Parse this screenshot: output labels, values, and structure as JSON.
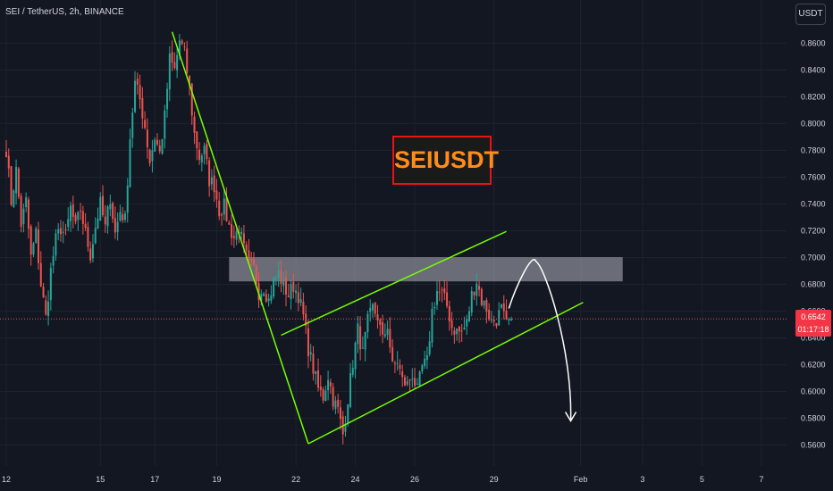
{
  "header": {
    "symbol_title": "SEI / TetherUS, 2h, BINANCE",
    "currency_label": "USDT"
  },
  "annotation": {
    "title": "SEIUSDT",
    "title_color": "#ff8c1a",
    "border_color": "#e81414"
  },
  "price_badge": {
    "price": "0.6542",
    "countdown": "01:17:18",
    "color": "#f23645"
  },
  "colors": {
    "up": "#26a69a",
    "down": "#ef5350",
    "trendline": "#76ff03",
    "resistance_zone": "#b2b5be",
    "background": "#131722"
  },
  "chart_data": {
    "type": "candlestick",
    "y_ticks": [
      "0.8600",
      "0.8400",
      "0.8200",
      "0.8000",
      "0.7800",
      "0.7600",
      "0.7400",
      "0.7200",
      "0.7000",
      "0.6800",
      "0.6600",
      "0.6400",
      "0.6200",
      "0.6000",
      "0.5800",
      "0.5600"
    ],
    "y_tick_values": [
      0.86,
      0.84,
      0.82,
      0.8,
      0.78,
      0.76,
      0.74,
      0.72,
      0.7,
      0.68,
      0.66,
      0.64,
      0.62,
      0.6,
      0.58,
      0.56
    ],
    "x_ticks": [
      "12",
      "15",
      "17",
      "19",
      "22",
      "24",
      "26",
      "29",
      "Feb",
      "3",
      "5",
      "7"
    ],
    "x_tick_index": [
      0,
      38,
      60,
      85,
      117,
      141,
      165,
      197,
      232,
      257,
      281,
      305
    ],
    "ylim": [
      0.549,
      0.884
    ],
    "candle_count": 205,
    "last_price": 0.6542,
    "anchors": [
      [
        0,
        0.781
      ],
      [
        2,
        0.742
      ],
      [
        4,
        0.765
      ],
      [
        6,
        0.725
      ],
      [
        8,
        0.742
      ],
      [
        10,
        0.7
      ],
      [
        12,
        0.718
      ],
      [
        14,
        0.68
      ],
      [
        16,
        0.655
      ],
      [
        18,
        0.69
      ],
      [
        20,
        0.713
      ],
      [
        22,
        0.722
      ],
      [
        24,
        0.716
      ],
      [
        26,
        0.737
      ],
      [
        28,
        0.722
      ],
      [
        30,
        0.736
      ],
      [
        32,
        0.718
      ],
      [
        34,
        0.702
      ],
      [
        36,
        0.723
      ],
      [
        38,
        0.74
      ],
      [
        40,
        0.722
      ],
      [
        42,
        0.745
      ],
      [
        44,
        0.718
      ],
      [
        46,
        0.735
      ],
      [
        48,
        0.728
      ],
      [
        50,
        0.79
      ],
      [
        52,
        0.83
      ],
      [
        54,
        0.818
      ],
      [
        56,
        0.798
      ],
      [
        58,
        0.772
      ],
      [
        60,
        0.79
      ],
      [
        62,
        0.778
      ],
      [
        64,
        0.805
      ],
      [
        66,
        0.848
      ],
      [
        68,
        0.84
      ],
      [
        70,
        0.862
      ],
      [
        72,
        0.852
      ],
      [
        74,
        0.826
      ],
      [
        76,
        0.792
      ],
      [
        78,
        0.775
      ],
      [
        80,
        0.78
      ],
      [
        82,
        0.758
      ],
      [
        84,
        0.754
      ],
      [
        86,
        0.735
      ],
      [
        88,
        0.738
      ],
      [
        90,
        0.723
      ],
      [
        92,
        0.715
      ],
      [
        94,
        0.722
      ],
      [
        96,
        0.706
      ],
      [
        98,
        0.695
      ],
      [
        100,
        0.692
      ],
      [
        102,
        0.674
      ],
      [
        104,
        0.678
      ],
      [
        106,
        0.668
      ],
      [
        108,
        0.682
      ],
      [
        110,
        0.688
      ],
      [
        112,
        0.679
      ],
      [
        114,
        0.672
      ],
      [
        116,
        0.679
      ],
      [
        118,
        0.672
      ],
      [
        120,
        0.656
      ],
      [
        122,
        0.632
      ],
      [
        124,
        0.617
      ],
      [
        126,
        0.602
      ],
      [
        128,
        0.596
      ],
      [
        130,
        0.612
      ],
      [
        132,
        0.594
      ],
      [
        134,
        0.586
      ],
      [
        136,
        0.568
      ],
      [
        138,
        0.595
      ],
      [
        140,
        0.622
      ],
      [
        142,
        0.646
      ],
      [
        144,
        0.628
      ],
      [
        146,
        0.652
      ],
      [
        148,
        0.662
      ],
      [
        150,
        0.656
      ],
      [
        152,
        0.638
      ],
      [
        154,
        0.65
      ],
      [
        156,
        0.618
      ],
      [
        158,
        0.623
      ],
      [
        160,
        0.608
      ],
      [
        162,
        0.605
      ],
      [
        164,
        0.613
      ],
      [
        166,
        0.6
      ],
      [
        168,
        0.618
      ],
      [
        170,
        0.622
      ],
      [
        172,
        0.66
      ],
      [
        174,
        0.675
      ],
      [
        176,
        0.672
      ],
      [
        178,
        0.664
      ],
      [
        180,
        0.648
      ],
      [
        182,
        0.645
      ],
      [
        184,
        0.644
      ],
      [
        186,
        0.651
      ],
      [
        188,
        0.672
      ],
      [
        190,
        0.683
      ],
      [
        192,
        0.668
      ],
      [
        194,
        0.662
      ],
      [
        196,
        0.652
      ],
      [
        198,
        0.654
      ],
      [
        200,
        0.661
      ],
      [
        202,
        0.649
      ],
      [
        204,
        0.654
      ]
    ],
    "resistance_zone": {
      "x0": 90,
      "x1": 249,
      "y0": 0.6822,
      "y1": 0.7003
    },
    "trendlines": [
      {
        "from": [
          67,
          0.8685
        ],
        "to": [
          122,
          0.561
        ]
      },
      {
        "from": [
          122,
          0.561
        ],
        "to": [
          233,
          0.6665
        ]
      },
      {
        "from": [
          111,
          0.642
        ],
        "to": [
          202,
          0.7195
        ]
      }
    ],
    "projection": [
      [
        203,
        0.662
      ],
      [
        214,
        0.697
      ],
      [
        228,
        0.578
      ]
    ]
  }
}
